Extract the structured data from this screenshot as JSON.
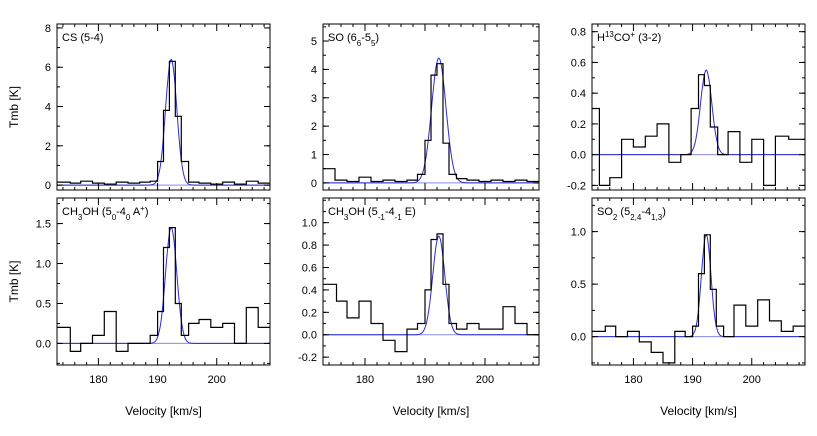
{
  "chart_data": [
    {
      "type": "line",
      "title": "CS (5-4)",
      "title_parts": [
        {
          "t": "CS (5-4)",
          "s": ""
        }
      ],
      "xlim": [
        173,
        209
      ],
      "ylim": [
        -0.25,
        8.2
      ],
      "xticks": [
        180,
        190,
        200
      ],
      "xtick_labels": [
        "",
        "",
        ""
      ],
      "yticks": [
        0,
        2,
        4,
        6,
        8
      ],
      "ytick_labels": [
        "0",
        "2",
        "4",
        "6",
        "8"
      ],
      "ylabel": "Tmb [K]",
      "xlabel": "",
      "fit": {
        "amp": 6.4,
        "center": 192.3,
        "sigma": 0.95,
        "base": 0.0
      },
      "x": [
        174.5,
        176,
        178,
        180,
        182,
        184,
        186,
        188,
        189.5,
        190.5,
        191.5,
        192.5,
        193.5,
        194.5,
        196,
        198,
        200,
        202,
        204,
        206,
        208
      ],
      "y": [
        0.15,
        0.1,
        0.2,
        0.1,
        0.05,
        0.15,
        0.1,
        0.15,
        0.2,
        1.2,
        3.8,
        6.3,
        3.5,
        1.2,
        0.15,
        0.1,
        0.05,
        0.15,
        0.05,
        0.2,
        0.1
      ]
    },
    {
      "type": "line",
      "title": "SO (65-54)",
      "title_parts": [
        {
          "t": "SO (6",
          "s": ""
        },
        {
          "t": "6",
          "s": "sub"
        },
        {
          "t": "-5",
          "s": ""
        },
        {
          "t": "5",
          "s": "sub"
        },
        {
          "t": ")",
          "s": ""
        }
      ],
      "xlim": [
        173,
        209
      ],
      "ylim": [
        -0.25,
        5.6
      ],
      "xticks": [
        180,
        190,
        200
      ],
      "xtick_labels": [
        "",
        "",
        ""
      ],
      "yticks": [
        0,
        1,
        2,
        3,
        4,
        5
      ],
      "ytick_labels": [
        "0",
        "1",
        "2",
        "3",
        "4",
        "5"
      ],
      "ylabel": "",
      "xlabel": "",
      "fit": {
        "amp": 4.4,
        "center": 192.3,
        "sigma": 1.2,
        "base": 0.0
      },
      "x": [
        174,
        176,
        178,
        180,
        182,
        184,
        186,
        188,
        189.5,
        190.5,
        191.5,
        192.5,
        193.5,
        194.5,
        196,
        198,
        200,
        202,
        204,
        206,
        208
      ],
      "y": [
        0.5,
        0.1,
        0.05,
        0.2,
        0.05,
        0.1,
        0.05,
        0.1,
        0.3,
        1.5,
        3.8,
        4.2,
        1.4,
        0.3,
        0.15,
        0.1,
        0.05,
        0.1,
        0.05,
        0.1,
        0.05
      ]
    },
    {
      "type": "line",
      "title": "H13CO+ (3-2)",
      "title_parts": [
        {
          "t": "H",
          "s": ""
        },
        {
          "t": "13",
          "s": "sup"
        },
        {
          "t": "CO",
          "s": ""
        },
        {
          "t": "+",
          "s": "sup"
        },
        {
          "t": " (3-2)",
          "s": ""
        }
      ],
      "xlim": [
        173,
        209
      ],
      "ylim": [
        -0.23,
        0.85
      ],
      "xticks": [
        180,
        190,
        200
      ],
      "xtick_labels": [
        "",
        "",
        ""
      ],
      "yticks": [
        -0.2,
        0.0,
        0.2,
        0.4,
        0.6,
        0.8
      ],
      "ytick_labels": [
        "-0.2",
        "0.0",
        "0.2",
        "0.4",
        "0.6",
        "0.8"
      ],
      "ylabel": "",
      "xlabel": "",
      "fit": {
        "amp": 0.55,
        "center": 192.3,
        "sigma": 0.95,
        "base": 0.0
      },
      "x": [
        173.5,
        175,
        177,
        179,
        181,
        183,
        185,
        187,
        189,
        190.5,
        191.5,
        192.5,
        193.5,
        195,
        197,
        199,
        201,
        203,
        205,
        207.5
      ],
      "y": [
        0.3,
        -0.2,
        -0.15,
        0.1,
        0.05,
        0.12,
        0.2,
        -0.05,
        0.0,
        0.3,
        0.52,
        0.45,
        0.18,
        0.0,
        0.15,
        -0.05,
        0.1,
        -0.2,
        0.12,
        0.1
      ]
    },
    {
      "type": "line",
      "title": "CH3OH (50-40 A+)",
      "title_parts": [
        {
          "t": "CH",
          "s": ""
        },
        {
          "t": "3",
          "s": "sub"
        },
        {
          "t": "OH (5",
          "s": ""
        },
        {
          "t": "0",
          "s": "sub"
        },
        {
          "t": "-4",
          "s": ""
        },
        {
          "t": "0",
          "s": "sub"
        },
        {
          "t": " A",
          "s": ""
        },
        {
          "t": "+",
          "s": "sup"
        },
        {
          "t": ")",
          "s": ""
        }
      ],
      "xlim": [
        173,
        209
      ],
      "ylim": [
        -0.27,
        1.82
      ],
      "xticks": [
        180,
        190,
        200
      ],
      "xtick_labels": [
        "180",
        "190",
        "200"
      ],
      "yticks": [
        0.0,
        0.5,
        1.0,
        1.5
      ],
      "ytick_labels": [
        "0.0",
        "0.5",
        "1.0",
        "1.5"
      ],
      "ylabel": "Tmb [K]",
      "xlabel": "Velocity [km/s]",
      "fit": {
        "amp": 1.45,
        "center": 192.3,
        "sigma": 0.95,
        "base": 0.0
      },
      "x": [
        174.5,
        176,
        178,
        180,
        182,
        184,
        186,
        188,
        189.5,
        190.5,
        191.5,
        192.5,
        193.5,
        194.5,
        196,
        198,
        200,
        202,
        204,
        206,
        208
      ],
      "y": [
        0.2,
        -0.1,
        0.0,
        0.1,
        0.4,
        -0.1,
        0.0,
        0.0,
        0.1,
        0.4,
        1.2,
        1.45,
        0.5,
        0.1,
        0.25,
        0.3,
        0.2,
        0.25,
        0.0,
        0.45,
        0.2
      ]
    },
    {
      "type": "line",
      "title": "CH3OH (5-1-4-1 E)",
      "title_parts": [
        {
          "t": "CH",
          "s": ""
        },
        {
          "t": "3",
          "s": "sub"
        },
        {
          "t": "OH (5",
          "s": ""
        },
        {
          "t": "-1",
          "s": "sub"
        },
        {
          "t": "-4",
          "s": ""
        },
        {
          "t": "-1",
          "s": "sub"
        },
        {
          "t": " E)",
          "s": ""
        }
      ],
      "xlim": [
        173,
        209
      ],
      "ylim": [
        -0.27,
        1.22
      ],
      "xticks": [
        180,
        190,
        200
      ],
      "xtick_labels": [
        "180",
        "190",
        "200"
      ],
      "yticks": [
        -0.2,
        0.0,
        0.2,
        0.4,
        0.6,
        0.8,
        1.0
      ],
      "ytick_labels": [
        "-0.2",
        "0.0",
        "0.2",
        "0.4",
        "0.6",
        "0.8",
        "1.0"
      ],
      "ylabel": "",
      "xlabel": "Velocity [km/s]",
      "fit": {
        "amp": 0.88,
        "center": 192.3,
        "sigma": 1.0,
        "base": 0.0
      },
      "x": [
        174.5,
        176,
        178,
        180,
        182,
        184,
        186,
        188,
        189.5,
        190.5,
        191.5,
        192.5,
        193.5,
        194.5,
        196,
        198,
        200,
        202,
        204,
        206,
        208
      ],
      "y": [
        0.45,
        0.3,
        0.15,
        0.3,
        0.1,
        -0.05,
        -0.15,
        0.05,
        0.1,
        0.4,
        0.85,
        0.9,
        0.45,
        0.1,
        0.05,
        0.1,
        0.05,
        0.05,
        0.25,
        0.1,
        0.0
      ]
    },
    {
      "type": "line",
      "title": "SO2 (52,4-41,3)",
      "title_parts": [
        {
          "t": "SO",
          "s": ""
        },
        {
          "t": "2",
          "s": "sub"
        },
        {
          "t": " (5",
          "s": ""
        },
        {
          "t": "2,4",
          "s": "sub"
        },
        {
          "t": "-4",
          "s": ""
        },
        {
          "t": "1,3",
          "s": "sub"
        },
        {
          "t": ")",
          "s": ""
        }
      ],
      "xlim": [
        173,
        209
      ],
      "ylim": [
        -0.27,
        1.32
      ],
      "xticks": [
        180,
        190,
        200
      ],
      "xtick_labels": [
        "180",
        "190",
        "200"
      ],
      "yticks": [
        0.0,
        0.5,
        1.0
      ],
      "ytick_labels": [
        "0.0",
        "0.5",
        "1.0"
      ],
      "ylabel": "",
      "xlabel": "Velocity [km/s]",
      "fit": {
        "amp": 0.97,
        "center": 192.3,
        "sigma": 0.8,
        "base": 0.0
      },
      "x": [
        174.5,
        176,
        178,
        180,
        182,
        184,
        186,
        188,
        189.5,
        190.5,
        191.5,
        192.5,
        193.5,
        194.5,
        196,
        198,
        200,
        202,
        204,
        206,
        208
      ],
      "y": [
        0.05,
        0.1,
        0.0,
        0.05,
        -0.05,
        -0.15,
        -0.25,
        0.05,
        0.0,
        0.1,
        0.6,
        0.97,
        0.45,
        0.1,
        0.0,
        0.3,
        0.1,
        0.35,
        0.15,
        0.05,
        0.1
      ]
    }
  ]
}
